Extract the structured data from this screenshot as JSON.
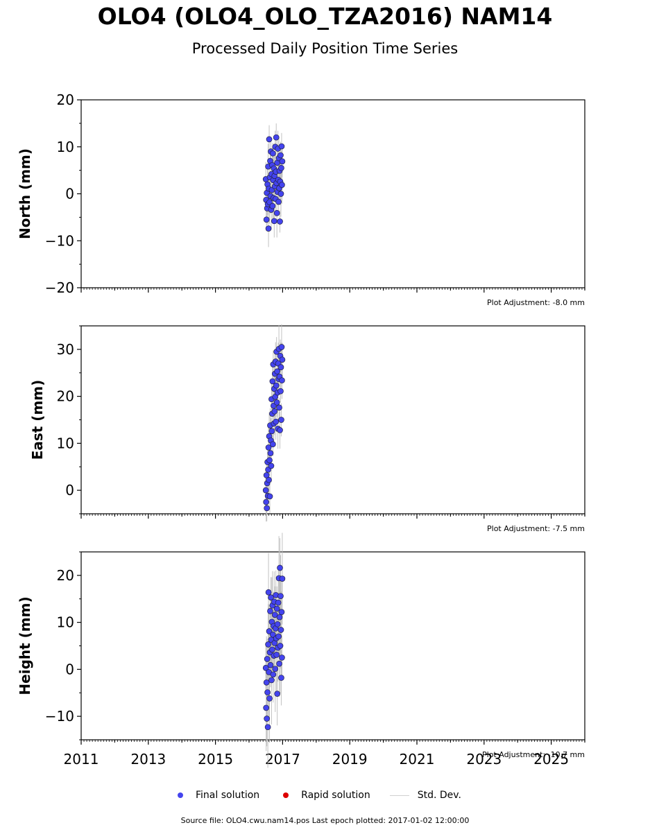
{
  "title": "OLO4 (OLO4_OLO_TZA2016) NAM14",
  "subtitle": "Processed Daily Position Time Series",
  "footer": {
    "source_text": "Source file: OLO4.cwu.nam14.pos  Last epoch plotted: 2017-01-02 12:00:00"
  },
  "legend": {
    "final_label": "Final solution",
    "rapid_label": "Rapid solution",
    "stddev_label": "Std. Dev."
  },
  "colors": {
    "final": "#4444ee",
    "rapid": "#dd0000",
    "stddev": "#bbbbbb"
  },
  "chart_data": {
    "type": "scatter",
    "xlim": [
      2011,
      2026
    ],
    "xticks": [
      "2011",
      "2013",
      "2015",
      "2017",
      "2019",
      "2021",
      "2023",
      "2025"
    ],
    "data_range": {
      "start": 2016.5,
      "end": 2017.0
    },
    "panels": [
      {
        "id": "north",
        "ylabel": "North (mm)",
        "ylim": [
          -20,
          20
        ],
        "yticks": [
          "20",
          "10",
          "0",
          "−10",
          "−20"
        ],
        "adjustment": "Plot Adjustment: -8.0 mm",
        "values": [
          [
            2016.5,
            3.1
          ],
          [
            2016.51,
            -1.3
          ],
          [
            2016.52,
            -5.5
          ],
          [
            2016.53,
            0.2
          ],
          [
            2016.54,
            -3.1
          ],
          [
            2016.55,
            2.0
          ],
          [
            2016.56,
            -2.2
          ],
          [
            2016.57,
            5.8
          ],
          [
            2016.58,
            -7.4
          ],
          [
            2016.59,
            1.1
          ],
          [
            2016.6,
            11.6
          ],
          [
            2016.61,
            -1.8
          ],
          [
            2016.62,
            3.5
          ],
          [
            2016.63,
            7.0
          ],
          [
            2016.64,
            -0.5
          ],
          [
            2016.65,
            9.0
          ],
          [
            2016.66,
            -3.4
          ],
          [
            2016.67,
            4.2
          ],
          [
            2016.68,
            0.8
          ],
          [
            2016.69,
            6.1
          ],
          [
            2016.7,
            -2.6
          ],
          [
            2016.71,
            8.6
          ],
          [
            2016.72,
            2.9
          ],
          [
            2016.73,
            -0.9
          ],
          [
            2016.74,
            5.4
          ],
          [
            2016.75,
            -5.8
          ],
          [
            2016.76,
            3.8
          ],
          [
            2016.77,
            1.6
          ],
          [
            2016.78,
            10.0
          ],
          [
            2016.79,
            -1.1
          ],
          [
            2016.8,
            4.7
          ],
          [
            2016.81,
            12.0
          ],
          [
            2016.82,
            2.3
          ],
          [
            2016.83,
            -4.1
          ],
          [
            2016.84,
            6.6
          ],
          [
            2016.85,
            0.4
          ],
          [
            2016.86,
            9.6
          ],
          [
            2016.87,
            3.0
          ],
          [
            2016.88,
            -1.7
          ],
          [
            2016.89,
            7.6
          ],
          [
            2016.9,
            1.2
          ],
          [
            2016.91,
            4.9
          ],
          [
            2016.92,
            -5.9
          ],
          [
            2016.93,
            2.6
          ],
          [
            2016.94,
            8.2
          ],
          [
            2016.95,
            0.0
          ],
          [
            2016.96,
            5.5
          ],
          [
            2016.97,
            10.1
          ],
          [
            2016.98,
            1.9
          ],
          [
            2016.99,
            6.9
          ]
        ]
      },
      {
        "id": "east",
        "ylabel": "East (mm)",
        "ylim": [
          -5,
          35
        ],
        "yticks": [
          "30",
          "20",
          "10",
          "0"
        ],
        "adjustment": "Plot Adjustment: -7.5 mm",
        "values": [
          [
            2016.5,
            0.0
          ],
          [
            2016.51,
            -2.5
          ],
          [
            2016.52,
            3.2
          ],
          [
            2016.53,
            -3.8
          ],
          [
            2016.54,
            1.5
          ],
          [
            2016.55,
            6.0
          ],
          [
            2016.56,
            -1.2
          ],
          [
            2016.57,
            4.4
          ],
          [
            2016.58,
            9.1
          ],
          [
            2016.59,
            2.2
          ],
          [
            2016.6,
            11.5
          ],
          [
            2016.61,
            6.4
          ],
          [
            2016.62,
            -1.3
          ],
          [
            2016.63,
            13.8
          ],
          [
            2016.64,
            7.9
          ],
          [
            2016.65,
            10.6
          ],
          [
            2016.66,
            5.2
          ],
          [
            2016.67,
            19.4
          ],
          [
            2016.68,
            12.6
          ],
          [
            2016.69,
            16.3
          ],
          [
            2016.7,
            23.2
          ],
          [
            2016.71,
            9.8
          ],
          [
            2016.72,
            26.8
          ],
          [
            2016.73,
            18.0
          ],
          [
            2016.74,
            14.2
          ],
          [
            2016.75,
            21.6
          ],
          [
            2016.76,
            16.8
          ],
          [
            2016.77,
            24.8
          ],
          [
            2016.78,
            19.9
          ],
          [
            2016.79,
            27.4
          ],
          [
            2016.8,
            14.6
          ],
          [
            2016.81,
            22.3
          ],
          [
            2016.82,
            29.5
          ],
          [
            2016.83,
            18.7
          ],
          [
            2016.84,
            25.3
          ],
          [
            2016.85,
            20.8
          ],
          [
            2016.86,
            13.1
          ],
          [
            2016.87,
            27.0
          ],
          [
            2016.88,
            23.7
          ],
          [
            2016.89,
            30.1
          ],
          [
            2016.9,
            17.6
          ],
          [
            2016.91,
            24.2
          ],
          [
            2016.92,
            12.8
          ],
          [
            2016.93,
            28.6
          ],
          [
            2016.94,
            21.1
          ],
          [
            2016.95,
            26.2
          ],
          [
            2016.96,
            15.0
          ],
          [
            2016.97,
            30.5
          ],
          [
            2016.98,
            23.4
          ],
          [
            2016.99,
            27.8
          ]
        ]
      },
      {
        "id": "height",
        "ylabel": "Height (mm)",
        "ylim": [
          -15,
          25
        ],
        "yticks": [
          "20",
          "10",
          "0",
          "−10"
        ],
        "adjustment": "Plot Adjustment: -10.7 mm",
        "values": [
          [
            2016.5,
            0.3
          ],
          [
            2016.51,
            -8.2
          ],
          [
            2016.52,
            -2.8
          ],
          [
            2016.53,
            -10.5
          ],
          [
            2016.54,
            2.2
          ],
          [
            2016.55,
            -4.9
          ],
          [
            2016.56,
            -12.3
          ],
          [
            2016.57,
            5.3
          ],
          [
            2016.58,
            16.4
          ],
          [
            2016.59,
            -0.6
          ],
          [
            2016.6,
            8.1
          ],
          [
            2016.61,
            -6.2
          ],
          [
            2016.62,
            3.6
          ],
          [
            2016.63,
            12.4
          ],
          [
            2016.64,
            0.9
          ],
          [
            2016.65,
            15.3
          ],
          [
            2016.66,
            6.3
          ],
          [
            2016.67,
            -2.3
          ],
          [
            2016.68,
            10.1
          ],
          [
            2016.69,
            4.2
          ],
          [
            2016.7,
            13.6
          ],
          [
            2016.71,
            7.4
          ],
          [
            2016.72,
            -1.1
          ],
          [
            2016.73,
            9.2
          ],
          [
            2016.74,
            2.9
          ],
          [
            2016.75,
            14.4
          ],
          [
            2016.76,
            5.6
          ],
          [
            2016.77,
            11.6
          ],
          [
            2016.78,
            0.1
          ],
          [
            2016.79,
            8.7
          ],
          [
            2016.8,
            15.8
          ],
          [
            2016.81,
            6.6
          ],
          [
            2016.82,
            3.1
          ],
          [
            2016.83,
            12.9
          ],
          [
            2016.84,
            -5.2
          ],
          [
            2016.85,
            9.6
          ],
          [
            2016.86,
            4.6
          ],
          [
            2016.87,
            14.2
          ],
          [
            2016.88,
            7.0
          ],
          [
            2016.89,
            19.4
          ],
          [
            2016.9,
            1.2
          ],
          [
            2016.91,
            11.1
          ],
          [
            2016.92,
            21.6
          ],
          [
            2016.93,
            5.0
          ],
          [
            2016.94,
            15.6
          ],
          [
            2016.95,
            8.4
          ],
          [
            2016.96,
            -1.8
          ],
          [
            2016.97,
            12.2
          ],
          [
            2016.98,
            2.5
          ],
          [
            2016.99,
            19.3
          ]
        ]
      }
    ]
  }
}
